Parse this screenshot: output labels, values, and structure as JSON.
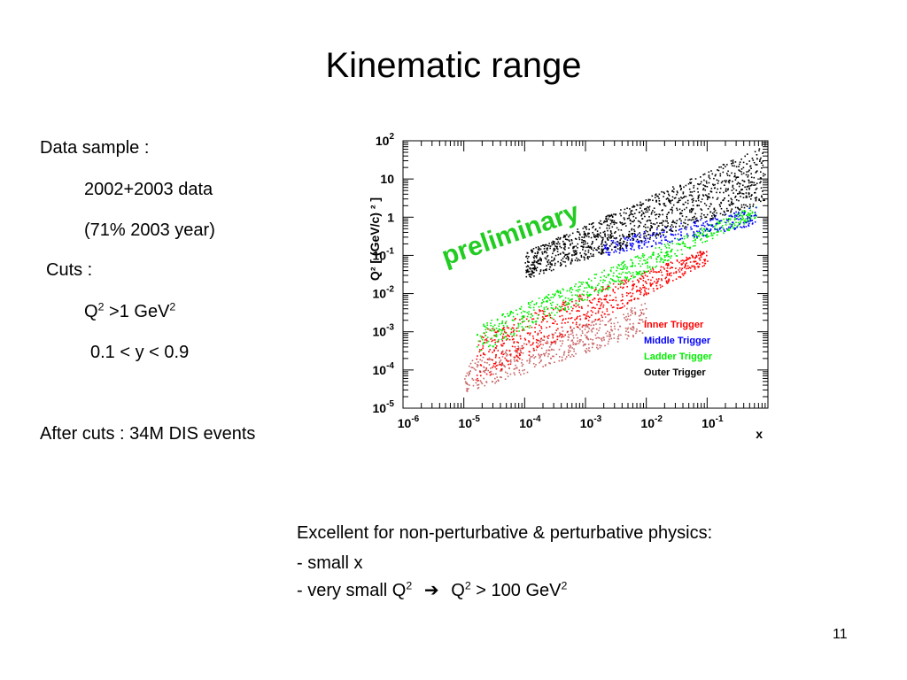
{
  "slide": {
    "title": "Kinematic range",
    "page_number": "11"
  },
  "left": {
    "data_sample_label": "Data  sample :",
    "data_years": "2002+2003 data",
    "data_fraction": "(71% 2003 year)",
    "cuts_label": "Cuts :",
    "q2_cut": {
      "prefix": "Q",
      "exp1": "2",
      "middle": " >1 GeV",
      "exp2": "2"
    },
    "y_cut": "0.1 < y < 0.9",
    "after_cuts": "After cuts : 34M DIS events"
  },
  "bottom": {
    "heading": "Excellent for non-perturbative & perturbative physics:",
    "item1": "- small x",
    "item2": {
      "prefix": "- very small Q",
      "exp1": "2",
      "arrow": "➔",
      "q": "Q",
      "exp2": "2",
      "rest": " > 100 GeV",
      "exp3": "2"
    }
  },
  "chart_data": {
    "type": "scatter",
    "title": "",
    "xlabel": "x",
    "ylabel": "Q² [ (GeV/c) ² ]",
    "x_scale": "log",
    "y_scale": "log",
    "xlim": [
      1e-06,
      1
    ],
    "ylim": [
      1e-05,
      100
    ],
    "x_tick_labels": [
      {
        "value": 1e-06,
        "base": "10",
        "exp": "-6"
      },
      {
        "value": 1e-05,
        "base": "10",
        "exp": "-5"
      },
      {
        "value": 0.0001,
        "base": "10",
        "exp": "-4"
      },
      {
        "value": 0.001,
        "base": "10",
        "exp": "-3"
      },
      {
        "value": 0.01,
        "base": "10",
        "exp": "-2"
      },
      {
        "value": 0.1,
        "base": "10",
        "exp": "-1"
      }
    ],
    "y_tick_labels": [
      {
        "value": 1e-05,
        "base": "10",
        "exp": "-5"
      },
      {
        "value": 0.0001,
        "base": "10",
        "exp": "-4"
      },
      {
        "value": 0.001,
        "base": "10",
        "exp": "-3"
      },
      {
        "value": 0.01,
        "base": "10",
        "exp": "-2"
      },
      {
        "value": 0.1,
        "base": "10",
        "exp": "-1"
      },
      {
        "value": 1,
        "base": "1",
        "exp": ""
      },
      {
        "value": 10,
        "base": "10",
        "exp": ""
      },
      {
        "value": 100,
        "base": "10",
        "exp": "2"
      }
    ],
    "annotation": {
      "text": "preliminary",
      "color": "#22cc22"
    },
    "legend_position": "lower-right",
    "series": [
      {
        "name": "Inner Trigger",
        "color": "#ff0000",
        "x_range": [
          1.5e-05,
          0.1
        ],
        "q2_range": [
          3e-05,
          0.15
        ]
      },
      {
        "name": "Middle Trigger",
        "color": "#0000ff",
        "x_range": [
          0.002,
          0.6
        ],
        "q2_range": [
          0.1,
          2
        ]
      },
      {
        "name": "Ladder Trigger",
        "color": "#00ee00",
        "x_range": [
          1.5e-05,
          0.6
        ],
        "q2_range": [
          0.0003,
          3
        ]
      },
      {
        "name": "Outer Trigger",
        "color": "#000000",
        "x_range": [
          0.0001,
          0.9
        ],
        "q2_range": [
          0.05,
          80
        ]
      }
    ],
    "background_distribution": {
      "color": "#c86464",
      "x_range": [
        1e-05,
        0.02
      ],
      "q2_range": [
        2e-05,
        0.008
      ]
    }
  }
}
